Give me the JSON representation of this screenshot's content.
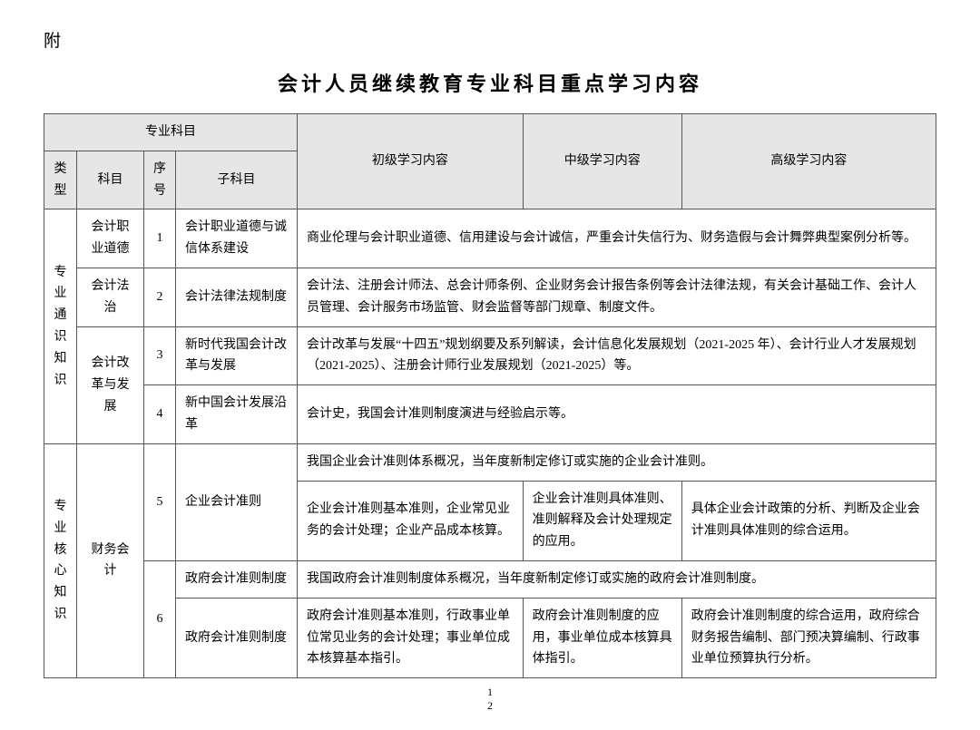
{
  "appendix": "附",
  "title": "会计人员继续教育专业科目重点学习内容",
  "header": {
    "group": "专业科目",
    "type": "类型",
    "subject": "科目",
    "num": "序号",
    "sub": "子科目",
    "elementary": "初级学习内容",
    "intermediate": "中级学习内容",
    "advanced": "高级学习内容"
  },
  "type1": "专业通识知识",
  "type2": "专业核心知识",
  "subj1": "会计职业道德",
  "subj2": "会计法治",
  "subj3": "会计改革与发展",
  "subj4": "财务会计",
  "n1": "1",
  "n2": "2",
  "n3": "3",
  "n4": "4",
  "n5": "5",
  "n6": "6",
  "sub1": "会计职业道德与诚信体系建设",
  "sub2": "会计法律法规制度",
  "sub3": "新时代我国会计改革与发展",
  "sub4": "新中国会计发展沿革",
  "sub5": "企业会计准则",
  "sub6a": "政府会计准则制度",
  "sub6b": "政府会计准则制度",
  "c1": "商业伦理与会计职业道德、信用建设与会计诚信，严重会计失信行为、财务造假与会计舞弊典型案例分析等。",
  "c2": "会计法、注册会计师法、总会计师条例、企业财务会计报告条例等会计法律法规，有关会计基础工作、会计人员管理、会计服务市场监管、财会监督等部门规章、制度文件。",
  "c3": "会计改革与发展“十四五”规划纲要及系列解读，会计信息化发展规划（2021-2025 年）、会计行业人才发展规划（2021-2025）、注册会计师行业发展规划（2021-2025）等。",
  "c4": "会计史，我国会计准则制度演进与经验启示等。",
  "c5top": "我国企业会计准则体系概况，当年度新制定修订或实施的企业会计准则。",
  "c5e": "企业会计准则基本准则，企业常见业务的会计处理；企业产品成本核算。",
  "c5i": "企业会计准则具体准则、准则解释及会计处理规定的应用。",
  "c5a": "具体企业会计政策的分析、判断及企业会计准则具体准则的综合运用。",
  "c6top": "我国政府会计准则制度体系概况，当年度新制定修订或实施的政府会计准则制度。",
  "c6e": "政府会计准则基本准则，行政事业单位常见业务的会计处理；事业单位成本核算基本指引。",
  "c6i": "政府会计准则制度的应用，事业单位成本核算具体指引。",
  "c6a": "政府会计准则制度的综合运用，政府综合财务报告编制、部门预决算编制、行政事业单位预算执行分析。",
  "page1": "1",
  "page2": "2"
}
